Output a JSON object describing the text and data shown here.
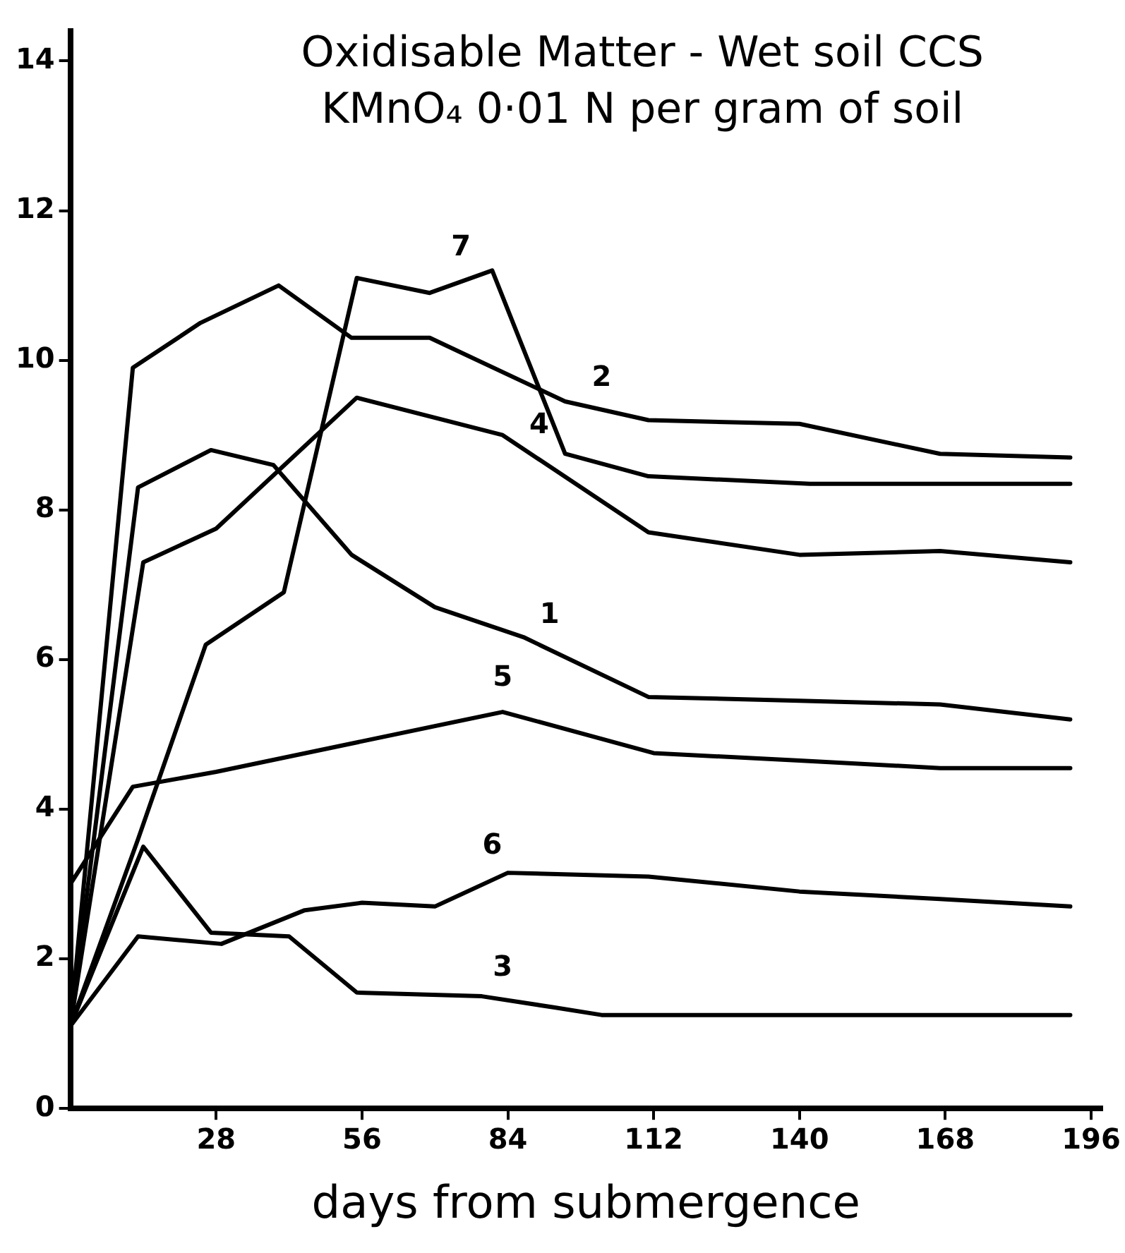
{
  "chart_data": {
    "type": "line",
    "title": "Oxidisable Matter - Wet soil CCS\nKMnO₄ 0·01 N per gram of soil",
    "xlabel": "days from submergence",
    "xlim": [
      0,
      198
    ],
    "xticks": [
      28,
      56,
      84,
      112,
      140,
      168,
      196
    ],
    "ylim": [
      0,
      14.4
    ],
    "yticks": [
      0,
      2,
      4,
      6,
      8,
      10,
      12,
      14
    ],
    "grid": false,
    "legend": false,
    "marker": "none",
    "line_style": "solid",
    "series": [
      {
        "name": "1",
        "color": "#000000",
        "x": [
          0,
          13,
          27,
          39,
          54,
          70,
          87,
          111,
          140,
          167,
          192
        ],
        "values": [
          1.1,
          8.3,
          8.8,
          8.6,
          7.4,
          6.7,
          6.3,
          5.5,
          5.45,
          5.4,
          5.2
        ]
      },
      {
        "name": "2",
        "color": "#000000",
        "x": [
          0,
          12,
          25,
          40,
          54,
          69,
          95,
          111,
          140,
          167,
          192
        ],
        "values": [
          1.1,
          9.9,
          10.5,
          11.0,
          10.3,
          10.3,
          9.45,
          9.2,
          9.15,
          8.75,
          8.7
        ]
      },
      {
        "name": "3",
        "color": "#000000",
        "x": [
          0,
          14,
          27,
          42,
          55,
          79,
          93,
          102,
          192
        ],
        "values": [
          1.1,
          3.5,
          2.35,
          2.3,
          1.55,
          1.5,
          1.35,
          1.25,
          1.25
        ]
      },
      {
        "name": "4",
        "color": "#000000",
        "x": [
          0,
          14,
          28,
          55,
          83,
          111,
          140,
          167,
          192
        ],
        "values": [
          1.1,
          7.3,
          7.75,
          9.5,
          9.0,
          7.7,
          7.4,
          7.45,
          7.3
        ]
      },
      {
        "name": "5",
        "color": "#000000",
        "x": [
          0,
          12,
          28,
          83,
          112,
          140,
          167,
          192
        ],
        "values": [
          3.0,
          4.3,
          4.5,
          5.3,
          4.75,
          4.65,
          4.55,
          4.55
        ]
      },
      {
        "name": "6",
        "color": "#000000",
        "x": [
          0,
          13,
          29,
          45,
          56,
          70,
          84,
          111,
          140,
          167,
          192
        ],
        "values": [
          1.1,
          2.3,
          2.2,
          2.65,
          2.75,
          2.7,
          3.15,
          3.1,
          2.9,
          2.8,
          2.7
        ]
      },
      {
        "name": "7",
        "color": "#000000",
        "x": [
          0,
          13,
          26,
          41,
          55,
          69,
          81,
          95,
          111,
          142,
          192
        ],
        "values": [
          1.1,
          3.6,
          6.2,
          6.9,
          11.1,
          10.9,
          11.2,
          8.75,
          8.45,
          8.35,
          8.35
        ]
      }
    ]
  }
}
